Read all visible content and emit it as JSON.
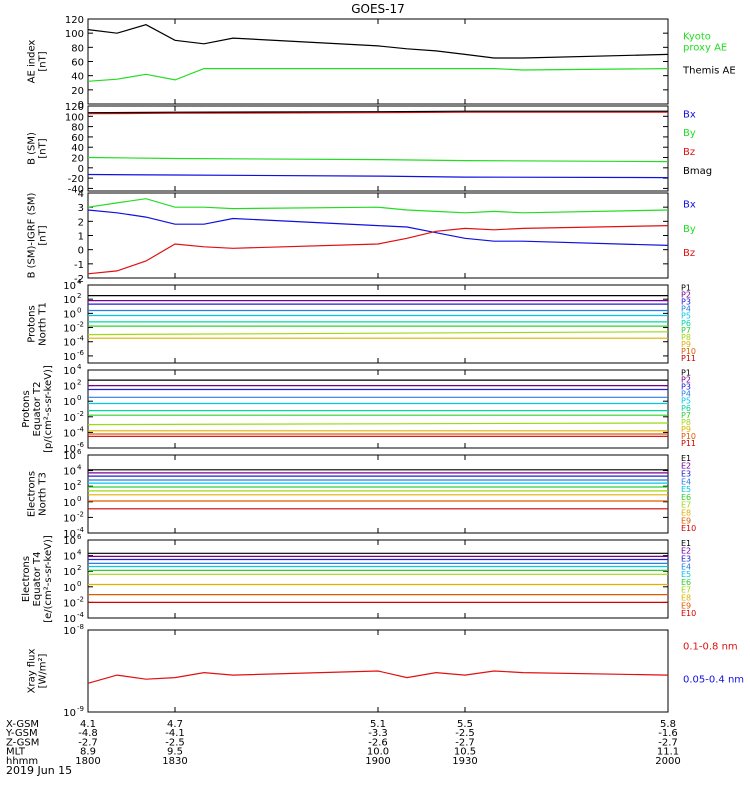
{
  "title": "GOES-17",
  "date_label": "2019 Jun 15",
  "orbit_table": {
    "row_labels": [
      "X-GSM",
      "Y-GSM",
      "Z-GSM",
      "MLT",
      "hhmm"
    ],
    "columns": [
      [
        "4.1",
        "-4.8",
        "-2.7",
        "8.9",
        "1800"
      ],
      [
        "4.7",
        "-4.1",
        "-2.5",
        "9.5",
        "1830"
      ],
      [
        "5.1",
        "-3.3",
        "-2.6",
        "10.0",
        "1900"
      ],
      [
        "5.5",
        "-2.5",
        "-2.7",
        "10.5",
        "1930"
      ],
      [
        "5.8",
        "-1.6",
        "-2.7",
        "11.1",
        "2000"
      ]
    ]
  },
  "colors": {
    "black": "#000000",
    "green": "#22dd22",
    "blue": "#1010e0",
    "red": "#e01010",
    "P1": "#000000",
    "P2": "#7a0090",
    "P3": "#2020d0",
    "P4": "#2a7ee8",
    "P5": "#00c8e8",
    "P6": "#00d8a0",
    "P7": "#30d030",
    "P8": "#a0d810",
    "P9": "#e0b000",
    "P10": "#e05a00",
    "P11": "#d00000"
  },
  "chart_data": [
    {
      "type": "line",
      "ylabel": "AE index\n[nT]",
      "ylim": [
        0,
        120
      ],
      "y_ticks": [
        "0",
        "20",
        "40",
        "60",
        "80",
        "100",
        "120"
      ],
      "x": [
        1800,
        1810,
        1820,
        1830,
        1840,
        1850,
        1900,
        1910,
        1920,
        1930,
        1940,
        1950,
        2000
      ],
      "series": [
        {
          "name": "Themis AE",
          "color": "#000000",
          "values": [
            105,
            100,
            112,
            90,
            85,
            93,
            82,
            78,
            75,
            70,
            65,
            65,
            70
          ]
        },
        {
          "name": "Kyoto\nproxy AE",
          "color": "#22dd22",
          "values": [
            32,
            35,
            42,
            34,
            50,
            50,
            50,
            50,
            50,
            50,
            50,
            48,
            50
          ]
        }
      ],
      "legend": [
        "Kyoto\nproxy AE",
        "Themis AE"
      ]
    },
    {
      "type": "line",
      "ylabel": "B (SM)\n[nT]",
      "ylim": [
        -45,
        120
      ],
      "y_ticks": [
        "-40",
        "-20",
        "0",
        "20",
        "40",
        "60",
        "80",
        "100",
        "120"
      ],
      "x": [
        1800,
        1830,
        1900,
        1930,
        2000
      ],
      "series": [
        {
          "name": "Bx",
          "color": "#1010e0",
          "values": [
            -13,
            -14,
            -16,
            -18,
            -19
          ]
        },
        {
          "name": "By",
          "color": "#22dd22",
          "values": [
            20,
            18,
            16,
            14,
            12
          ]
        },
        {
          "name": "Bz",
          "color": "#e01010",
          "values": [
            105,
            106,
            107,
            108,
            108
          ]
        },
        {
          "name": "Bmag",
          "color": "#000000",
          "values": [
            107,
            108,
            109,
            110,
            110
          ]
        }
      ],
      "legend": [
        "Bx",
        "By",
        "Bz",
        "Bmag"
      ]
    },
    {
      "type": "line",
      "ylabel": "B (SM)-IGRF (SM)\n[nT]",
      "ylim": [
        -2,
        4
      ],
      "y_ticks": [
        "-2",
        "-1",
        "0",
        "1",
        "2",
        "3",
        "4"
      ],
      "x": [
        1800,
        1810,
        1820,
        1830,
        1840,
        1850,
        1900,
        1910,
        1920,
        1930,
        1940,
        1950,
        2000
      ],
      "series": [
        {
          "name": "Bx",
          "color": "#1010e0",
          "values": [
            2.8,
            2.6,
            2.3,
            1.8,
            1.8,
            2.2,
            1.7,
            1.6,
            1.2,
            0.8,
            0.6,
            0.6,
            0.3
          ]
        },
        {
          "name": "By",
          "color": "#22dd22",
          "values": [
            3.0,
            3.3,
            3.6,
            3.0,
            3.0,
            2.9,
            3.0,
            2.8,
            2.7,
            2.6,
            2.7,
            2.6,
            2.8
          ]
        },
        {
          "name": "Bz",
          "color": "#e01010",
          "values": [
            -1.7,
            -1.5,
            -0.8,
            0.4,
            0.2,
            0.1,
            0.4,
            0.8,
            1.3,
            1.5,
            1.4,
            1.5,
            1.7
          ]
        }
      ],
      "legend": [
        "Bx",
        "By",
        "Bz"
      ]
    },
    {
      "type": "line",
      "ylabel": "Protons\nNorth T1",
      "log": true,
      "ylim_exp": [
        -7,
        4
      ],
      "tick_exps": [
        -6,
        -4,
        -2,
        0,
        2,
        4
      ],
      "x": [
        1800,
        2000
      ],
      "series": [
        {
          "name": "P1",
          "color": "#000000",
          "values": [
            2.5,
            2.5
          ]
        },
        {
          "name": "P2",
          "color": "#7a0090",
          "values": [
            1.8,
            1.8
          ]
        },
        {
          "name": "P3",
          "color": "#2020d0",
          "values": [
            1.3,
            1.3
          ]
        },
        {
          "name": "P4",
          "color": "#2a7ee8",
          "values": [
            0.4,
            0.4
          ]
        },
        {
          "name": "P5",
          "color": "#00c8e8",
          "values": [
            -0.3,
            -0.3
          ]
        },
        {
          "name": "P6",
          "color": "#00d8a0",
          "values": [
            -1.2,
            -1.2
          ]
        },
        {
          "name": "P7",
          "color": "#30d030",
          "values": [
            -1.8,
            -1.8
          ]
        },
        {
          "name": "P8",
          "color": "#a0d810",
          "values": [
            -3.0,
            -2.6
          ]
        },
        {
          "name": "P9",
          "color": "#e0b000",
          "values": [
            -3.5,
            -3.5
          ]
        }
      ],
      "legend": [
        "P1",
        "P2",
        "P3",
        "P4",
        "P5",
        "P6",
        "P7",
        "P8",
        "P9",
        "P10",
        "P11"
      ]
    },
    {
      "type": "line",
      "ylabel": "Protons\nEquator T2\n[p/(cm²-s-sr-keV)]",
      "log": true,
      "ylim_exp": [
        -6,
        4
      ],
      "tick_exps": [
        -6,
        -4,
        -2,
        0,
        2,
        4
      ],
      "x": [
        1800,
        2000
      ],
      "series": [
        {
          "name": "P1",
          "color": "#000000",
          "values": [
            2.7,
            2.7
          ]
        },
        {
          "name": "P2",
          "color": "#7a0090",
          "values": [
            2.0,
            2.0
          ]
        },
        {
          "name": "P3",
          "color": "#2020d0",
          "values": [
            1.5,
            1.5
          ]
        },
        {
          "name": "P4",
          "color": "#2a7ee8",
          "values": [
            0.5,
            0.5
          ]
        },
        {
          "name": "P5",
          "color": "#00c8e8",
          "values": [
            -0.3,
            -0.3
          ]
        },
        {
          "name": "P6",
          "color": "#00d8a0",
          "values": [
            -1.2,
            -1.2
          ]
        },
        {
          "name": "P7",
          "color": "#30d030",
          "values": [
            -1.8,
            -1.8
          ]
        },
        {
          "name": "P8",
          "color": "#a0d810",
          "values": [
            -3.0,
            -2.8
          ]
        },
        {
          "name": "P9",
          "color": "#e0b000",
          "values": [
            -3.8,
            -3.8
          ]
        },
        {
          "name": "P10",
          "color": "#e05a00",
          "values": [
            -4.2,
            -4.2
          ]
        },
        {
          "name": "P11",
          "color": "#d00000",
          "values": [
            -4.5,
            -4.5
          ]
        }
      ],
      "legend": [
        "P1",
        "P2",
        "P3",
        "P4",
        "P5",
        "P6",
        "P7",
        "P8",
        "P9",
        "P10",
        "P11"
      ]
    },
    {
      "type": "line",
      "ylabel": "Electrons\nNorth T3",
      "log": true,
      "ylim_exp": [
        -4,
        6
      ],
      "tick_exps": [
        -4,
        -2,
        0,
        2,
        4,
        6
      ],
      "x": [
        1800,
        2000
      ],
      "series": [
        {
          "name": "E1",
          "color": "#000000",
          "values": [
            4.1,
            4.1
          ]
        },
        {
          "name": "E2",
          "color": "#7a0090",
          "values": [
            3.7,
            3.7
          ]
        },
        {
          "name": "E3",
          "color": "#2020d0",
          "values": [
            3.3,
            3.3
          ]
        },
        {
          "name": "E4",
          "color": "#2a7ee8",
          "values": [
            2.8,
            2.8
          ]
        },
        {
          "name": "E5",
          "color": "#00c8e8",
          "values": [
            2.4,
            2.4
          ]
        },
        {
          "name": "E6",
          "color": "#30d030",
          "values": [
            1.9,
            1.9
          ]
        },
        {
          "name": "E7",
          "color": "#a0d810",
          "values": [
            1.4,
            1.4
          ]
        },
        {
          "name": "E8",
          "color": "#e0b000",
          "values": [
            0.9,
            0.9
          ]
        },
        {
          "name": "E9",
          "color": "#e05a00",
          "values": [
            0.1,
            0.1
          ]
        },
        {
          "name": "E10",
          "color": "#d00000",
          "values": [
            -0.9,
            -0.9
          ]
        }
      ],
      "legend": [
        "E1",
        "E2",
        "E3",
        "E4",
        "E5",
        "E6",
        "E7",
        "E8",
        "E9",
        "E10"
      ]
    },
    {
      "type": "line",
      "ylabel": "Electrons\nEquator T4\n[e/(cm²-s-sr-keV)]",
      "log": true,
      "ylim_exp": [
        -4,
        6
      ],
      "tick_exps": [
        -4,
        -2,
        0,
        2,
        4,
        6
      ],
      "x": [
        1800,
        2000
      ],
      "series": [
        {
          "name": "E1",
          "color": "#000000",
          "values": [
            4.3,
            4.3
          ]
        },
        {
          "name": "E2",
          "color": "#7a0090",
          "values": [
            3.9,
            3.9
          ]
        },
        {
          "name": "E3",
          "color": "#2020d0",
          "values": [
            3.5,
            3.5
          ]
        },
        {
          "name": "E4",
          "color": "#2a7ee8",
          "values": [
            3.0,
            3.0
          ]
        },
        {
          "name": "E5",
          "color": "#00c8e8",
          "values": [
            2.6,
            2.6
          ]
        },
        {
          "name": "E6",
          "color": "#30d030",
          "values": [
            2.1,
            2.1
          ]
        },
        {
          "name": "E7",
          "color": "#a0d810",
          "values": [
            1.6,
            1.6
          ]
        },
        {
          "name": "E8",
          "color": "#e0b000",
          "values": [
            0.3,
            0.3
          ]
        },
        {
          "name": "E9",
          "color": "#e05a00",
          "values": [
            -1.0,
            -1.0
          ]
        },
        {
          "name": "E10",
          "color": "#d00000",
          "values": [
            -2.0,
            -2.0
          ]
        }
      ],
      "legend": [
        "E1",
        "E2",
        "E3",
        "E4",
        "E5",
        "E6",
        "E7",
        "E8",
        "E9",
        "E10"
      ]
    },
    {
      "type": "line",
      "ylabel": "Xray flux\n[W/m²]",
      "log": true,
      "ylim_exp": [
        -9,
        -8
      ],
      "tick_exps": [
        -9,
        -8
      ],
      "x": [
        1800,
        1810,
        1820,
        1830,
        1840,
        1850,
        1900,
        1910,
        1920,
        1930,
        1940,
        1950,
        2000
      ],
      "series": [
        {
          "name": "0.1-0.8 nm",
          "color": "#e01010",
          "values": [
            -8.65,
            -8.55,
            -8.6,
            -8.58,
            -8.52,
            -8.55,
            -8.5,
            -8.58,
            -8.52,
            -8.55,
            -8.5,
            -8.52,
            -8.55
          ]
        }
      ],
      "legend": [
        "0.1-0.8 nm",
        "0.05-0.4 nm"
      ],
      "legend_colors": [
        "#e01010",
        "#1010e0"
      ]
    }
  ]
}
